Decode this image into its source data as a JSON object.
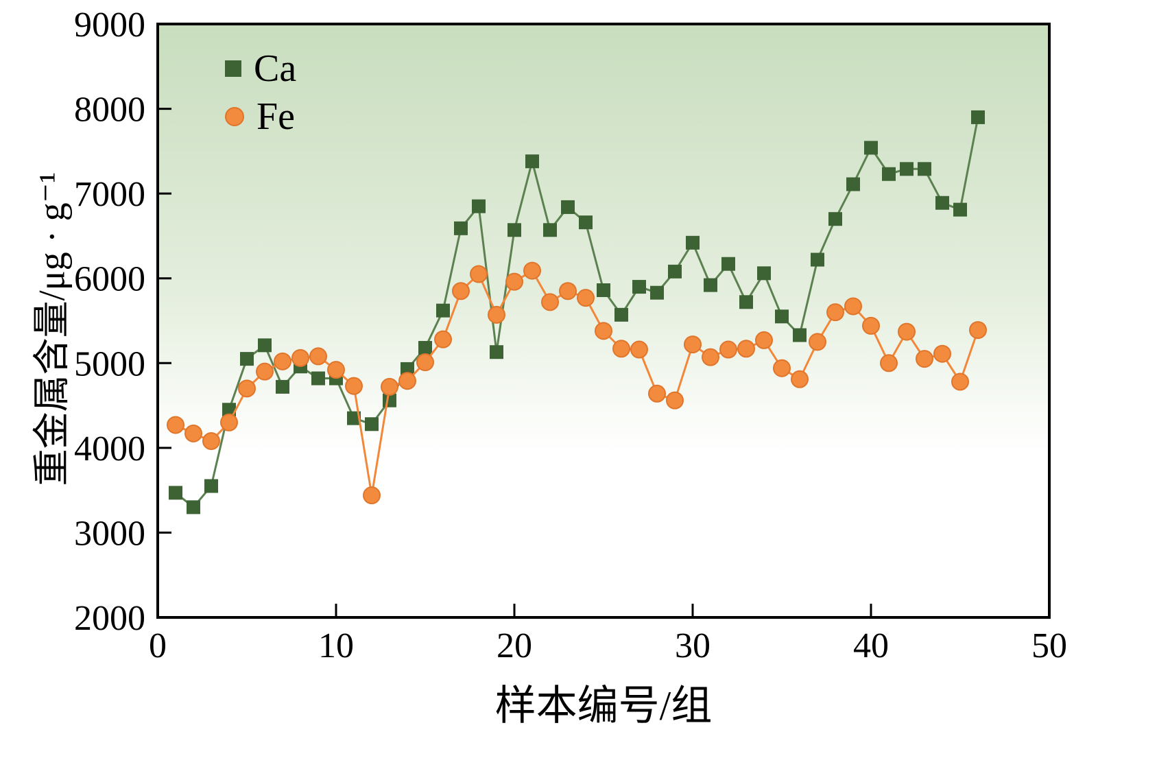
{
  "figure": {
    "x_axis_title": "样本编号/组",
    "y_axis_title": "重金属含量/μg · g⁻¹"
  },
  "legend": {
    "items": [
      {
        "label": "Ca",
        "marker": "square",
        "color": "#3d6234"
      },
      {
        "label": "Fe",
        "marker": "circle",
        "color": "#f28b3e"
      }
    ]
  },
  "chart_data": {
    "type": "line",
    "title": "",
    "xlabel": "样本编号/组",
    "ylabel": "重金属含量/μg · g⁻¹",
    "xlim": [
      0,
      50
    ],
    "ylim": [
      2000,
      9000
    ],
    "xticks": [
      0,
      10,
      20,
      30,
      40,
      50
    ],
    "yticks": [
      2000,
      3000,
      4000,
      5000,
      6000,
      7000,
      8000,
      9000
    ],
    "grid": false,
    "legend_position": "top-left",
    "background_gradient": {
      "top": "#c8ddbe",
      "mid": "#e4eedd",
      "bottom": "#ffffff"
    },
    "x": [
      1,
      2,
      3,
      4,
      5,
      6,
      7,
      8,
      9,
      10,
      11,
      12,
      13,
      14,
      15,
      16,
      17,
      18,
      19,
      20,
      21,
      22,
      23,
      24,
      25,
      26,
      27,
      28,
      29,
      30,
      31,
      32,
      33,
      34,
      35,
      36,
      37,
      38,
      39,
      40,
      41,
      42,
      43,
      44,
      45,
      46
    ],
    "series": [
      {
        "name": "Ca",
        "marker": "square",
        "marker_color": "#3d6234",
        "line_color": "#5b8150",
        "values": [
          3470,
          3300,
          3550,
          4450,
          5050,
          5210,
          4720,
          4960,
          4820,
          4820,
          4350,
          4280,
          4560,
          4930,
          5180,
          5620,
          6590,
          6850,
          5130,
          6570,
          7380,
          6570,
          6840,
          6660,
          5860,
          5570,
          5900,
          5830,
          6080,
          6420,
          5920,
          6170,
          5720,
          6060,
          5550,
          5330,
          6220,
          6700,
          7110,
          7540,
          7230,
          7290,
          7290,
          6890,
          6810,
          7900
        ]
      },
      {
        "name": "Fe",
        "marker": "circle",
        "marker_color": "#f28b3e",
        "line_color": "#f2873a",
        "values": [
          4270,
          4170,
          4080,
          4300,
          4700,
          4900,
          5020,
          5060,
          5080,
          4920,
          4730,
          3440,
          4720,
          4790,
          5010,
          5280,
          5850,
          6050,
          5570,
          5960,
          6090,
          5720,
          5850,
          5770,
          5380,
          5170,
          5160,
          4640,
          4560,
          5220,
          5070,
          5160,
          5170,
          5270,
          4940,
          4810,
          5250,
          5600,
          5670,
          5440,
          5000,
          5370,
          5050,
          5110,
          4780,
          5390
        ]
      }
    ]
  }
}
